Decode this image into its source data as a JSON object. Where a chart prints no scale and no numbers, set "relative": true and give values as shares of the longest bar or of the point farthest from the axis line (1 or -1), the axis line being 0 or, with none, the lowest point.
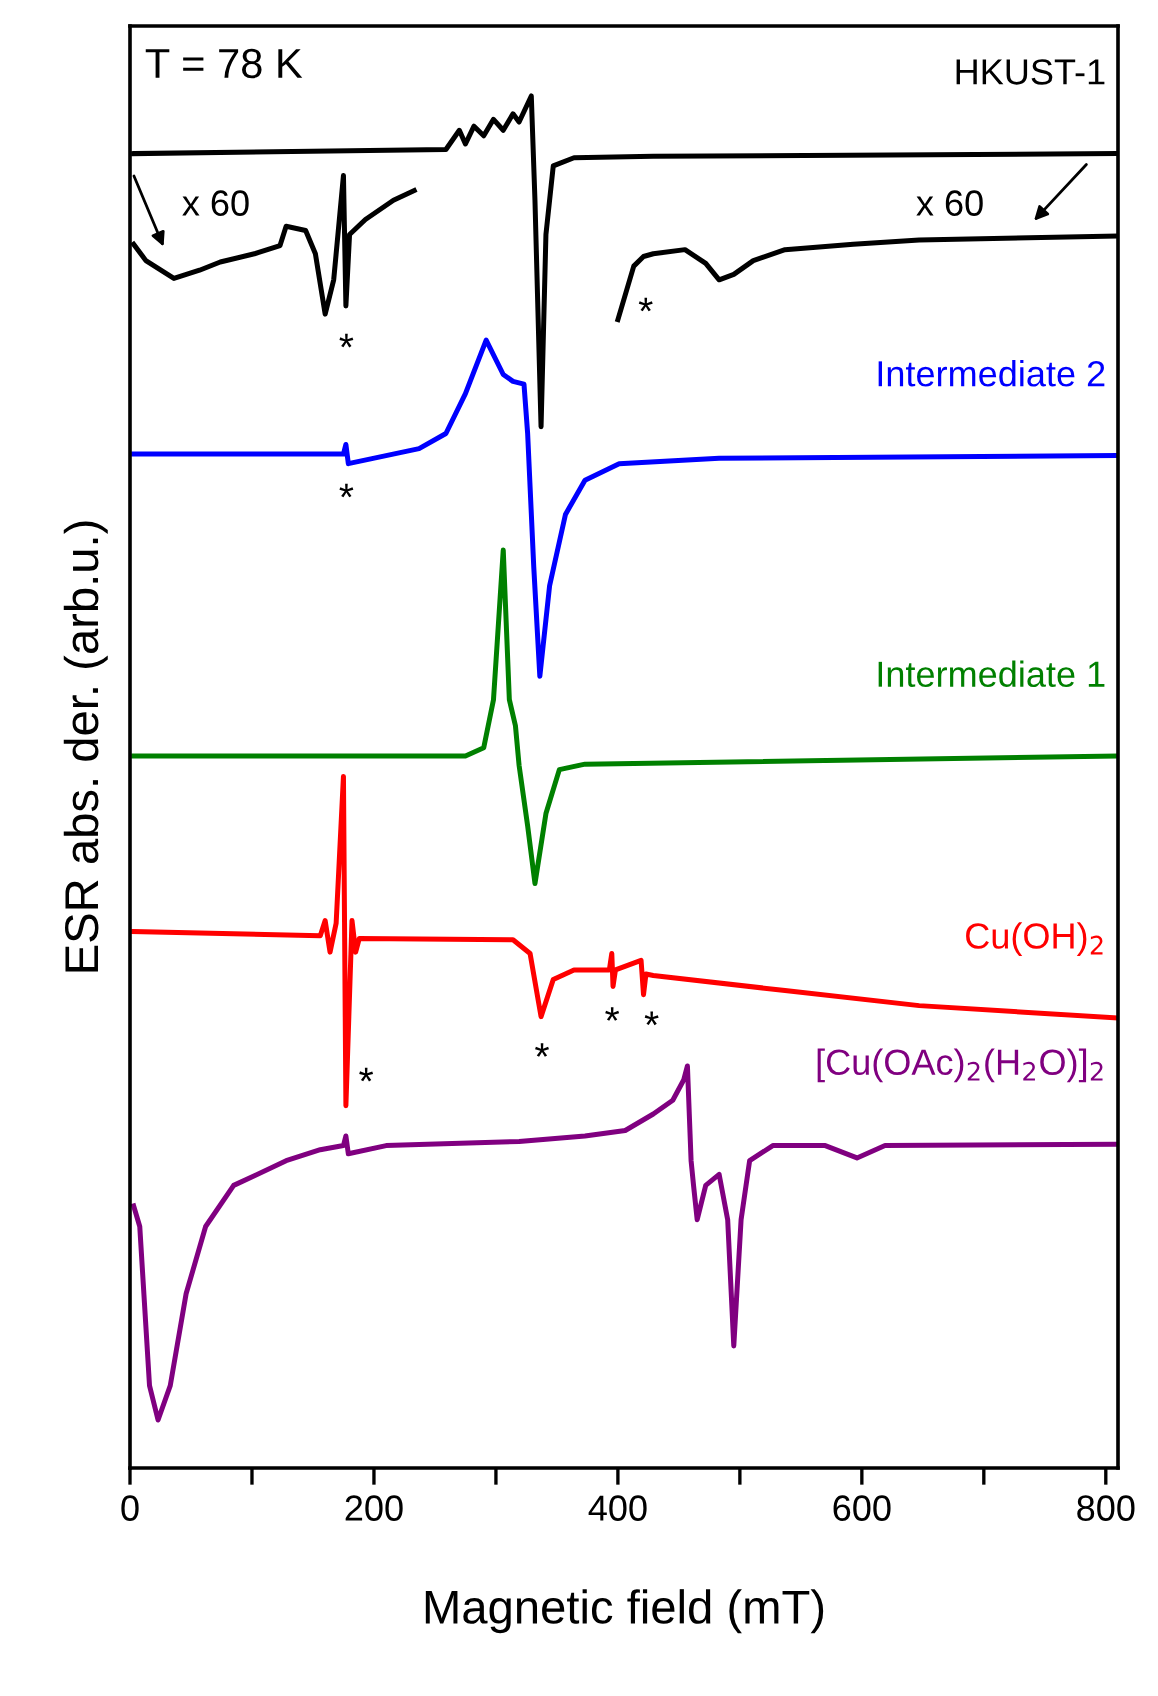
{
  "chart_data": {
    "type": "line",
    "relative": true,
    "xlabel": "Magnetic field (mT)",
    "ylabel": "ESR abs. der. (arb.u.)",
    "xlim": [
      0,
      810
    ],
    "xticks": [
      0,
      {
        "value": 100,
        "label": null
      },
      200,
      {
        "value": 300,
        "label": null
      },
      400,
      {
        "value": 500,
        "label": null
      },
      600,
      {
        "value": 700,
        "label": null
      },
      800
    ],
    "grid": false,
    "legend": false,
    "marker": "none",
    "line_style": "solid",
    "series": [
      {
        "name": "HKUST-1",
        "color": "#000000",
        "x": [
          3,
          259,
          270,
          275,
          282,
          290,
          298,
          306,
          314,
          319,
          329,
          332,
          337,
          341,
          347,
          364,
          429,
          809
        ],
        "values": [
          0.958,
          0.961,
          0.975,
          0.965,
          0.978,
          0.971,
          0.983,
          0.975,
          0.987,
          0.981,
          1.0,
          0.924,
          0.759,
          0.899,
          0.949,
          0.955,
          0.956,
          0.958
        ]
      },
      {
        "color": "#000000",
        "x": [
          3,
          13,
          36,
          57,
          74,
          102,
          123,
          128,
          144,
          152,
          160,
          167,
          175,
          177,
          180,
          193,
          216,
          233
        ],
        "values": [
          0.892,
          0.88,
          0.867,
          0.873,
          0.879,
          0.885,
          0.891,
          0.905,
          0.902,
          0.885,
          0.841,
          0.866,
          0.942,
          0.847,
          0.899,
          0.91,
          0.924,
          0.931
        ]
      },
      {
        "color": "#000000",
        "x": [
          400,
          413,
          421,
          429,
          455,
          472,
          483,
          495,
          511,
          537,
          593,
          647,
          809
        ],
        "values": [
          0.837,
          0.876,
          0.883,
          0.885,
          0.888,
          0.878,
          0.866,
          0.87,
          0.88,
          0.888,
          0.892,
          0.895,
          0.898
        ]
      },
      {
        "name": "Intermediate 2",
        "color": "#0000ff",
        "x": [
          3,
          175,
          177,
          179,
          237,
          259,
          275,
          292,
          306,
          314,
          323,
          326,
          331,
          336,
          344,
          357,
          373,
          401,
          483,
          809
        ],
        "values": [
          0.739,
          0.739,
          0.746,
          0.732,
          0.743,
          0.754,
          0.783,
          0.822,
          0.797,
          0.792,
          0.79,
          0.754,
          0.657,
          0.577,
          0.643,
          0.695,
          0.72,
          0.732,
          0.736,
          0.738
        ]
      },
      {
        "name": "Intermediate 1",
        "color": "#008000",
        "x": [
          3,
          275,
          290,
          298,
          306,
          311,
          316,
          319,
          326,
          332,
          341,
          352,
          373,
          809
        ],
        "values": [
          0.519,
          0.519,
          0.525,
          0.56,
          0.669,
          0.56,
          0.541,
          0.512,
          0.468,
          0.426,
          0.477,
          0.509,
          0.513,
          0.519
        ]
      },
      {
        "name": "Cu(OH)$_{2}$",
        "color": "#ff0000",
        "x": [
          3,
          156,
          160,
          164,
          169,
          175,
          177,
          182,
          185,
          188,
          314,
          328,
          337,
          347,
          364,
          393,
          395,
          396,
          398,
          419,
          421,
          423,
          429,
          537,
          647,
          809
        ],
        "values": [
          0.391,
          0.388,
          0.399,
          0.376,
          0.397,
          0.504,
          0.264,
          0.399,
          0.376,
          0.386,
          0.385,
          0.375,
          0.329,
          0.356,
          0.363,
          0.363,
          0.375,
          0.351,
          0.363,
          0.37,
          0.345,
          0.36,
          0.359,
          0.348,
          0.337,
          0.328
        ]
      },
      {
        "name": "[Cu(OAc)$_{2}$(H$_{2}$O)]$_{2}$",
        "color": "#800080",
        "x": [
          3,
          8,
          16,
          23,
          33,
          46,
          62,
          85,
          102,
          128,
          156,
          175,
          177,
          179,
          210,
          319,
          373,
          406,
          429,
          445,
          454,
          457,
          460,
          462,
          465,
          472,
          483,
          490,
          495,
          501,
          508,
          527,
          570,
          596,
          619,
          809
        ],
        "values": [
          0.191,
          0.176,
          0.06,
          0.035,
          0.06,
          0.127,
          0.176,
          0.206,
          0.213,
          0.224,
          0.232,
          0.235,
          0.242,
          0.229,
          0.235,
          0.238,
          0.242,
          0.246,
          0.258,
          0.268,
          0.283,
          0.293,
          0.224,
          0.206,
          0.181,
          0.206,
          0.214,
          0.181,
          0.089,
          0.181,
          0.224,
          0.235,
          0.235,
          0.226,
          0.235,
          0.236
        ]
      }
    ],
    "annotations": [
      "T = 78 K",
      "x 60",
      "x 60",
      "*",
      "*",
      "*",
      "*",
      "*",
      "*",
      "*"
    ]
  }
}
